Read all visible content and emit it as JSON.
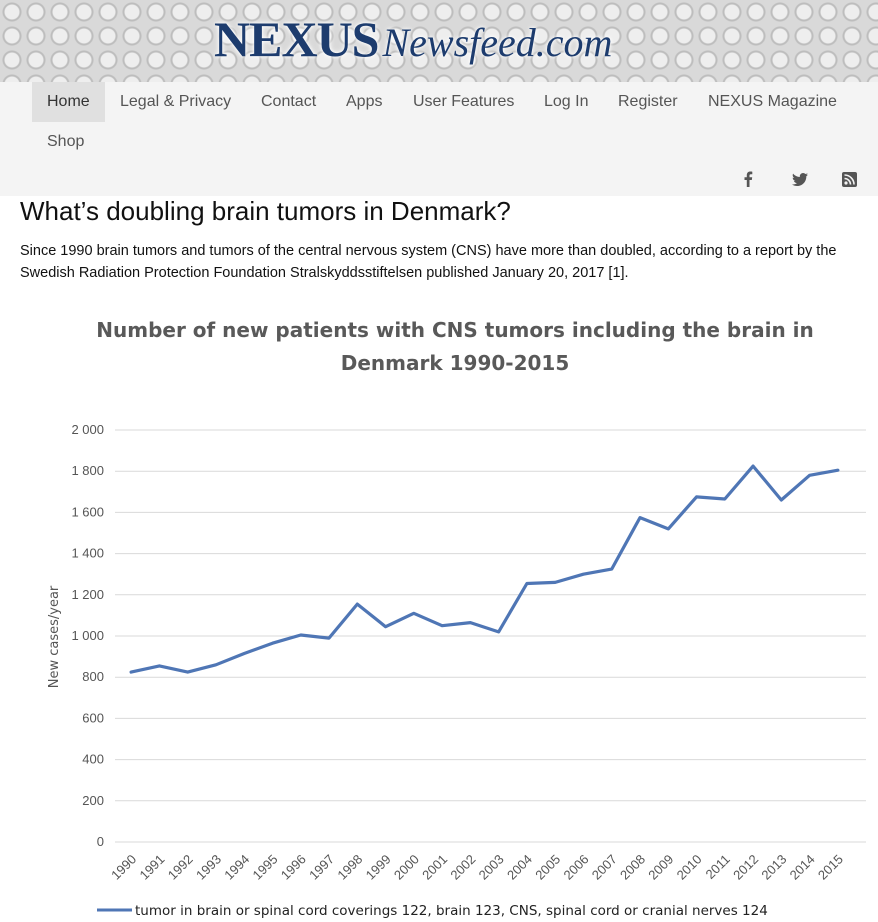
{
  "site": {
    "logo_main": "NEXUS",
    "logo_sub": "Newsfeed.com"
  },
  "nav": {
    "items": [
      "Home",
      "Legal & Privacy",
      "Contact",
      "Apps",
      "User Features",
      "Log In",
      "Register",
      "NEXUS Magazine",
      "Shop"
    ],
    "active": "Home"
  },
  "social": [
    {
      "name": "facebook-icon",
      "glyph": "f"
    },
    {
      "name": "twitter-icon",
      "glyph": "🐦"
    },
    {
      "name": "rss-icon",
      "glyph": "rss"
    }
  ],
  "article": {
    "title": "What’s doubling brain tumors in Denmark?",
    "body": "Since 1990 brain tumors and tumors of the central nervous system (CNS) have more than doubled, according to a report by the Swedish Radiation Protection Foundation Stralskyddsstiftelsen published January 20, 2017 [1]."
  },
  "chart_data": {
    "type": "line",
    "title_lines": [
      "Number of new patients with CNS tumors including the brain in",
      "Denmark 1990-2015"
    ],
    "ylabel": "New cases/year",
    "ylim": [
      0,
      2000
    ],
    "yticks": [
      0,
      200,
      400,
      600,
      800,
      1000,
      1200,
      1400,
      1600,
      1800,
      2000
    ],
    "ytick_labels": [
      "0",
      "200",
      "400",
      "600",
      "800",
      "1 000",
      "1 200",
      "1 400",
      "1 600",
      "1 800",
      "2 000"
    ],
    "grid": true,
    "legend_position": "bottom",
    "color": "#4f76b5",
    "x": [
      "1990",
      "1991",
      "1992",
      "1993",
      "1994",
      "1995",
      "1996",
      "1997",
      "1998",
      "1999",
      "2000",
      "2001",
      "2002",
      "2003",
      "2004",
      "2005",
      "2006",
      "2007",
      "2008",
      "2009",
      "2010",
      "2011",
      "2012",
      "2013",
      "2014",
      "2015"
    ],
    "series": [
      {
        "name": "tumor in brain or spinal cord coverings 122, brain 123, CNS, spinal cord or cranial nerves 124",
        "values": [
          825,
          855,
          825,
          860,
          915,
          965,
          1005,
          990,
          1155,
          1045,
          1110,
          1050,
          1065,
          1020,
          1255,
          1260,
          1300,
          1325,
          1575,
          1520,
          1675,
          1665,
          1825,
          1660,
          1780,
          1805
        ]
      }
    ]
  }
}
